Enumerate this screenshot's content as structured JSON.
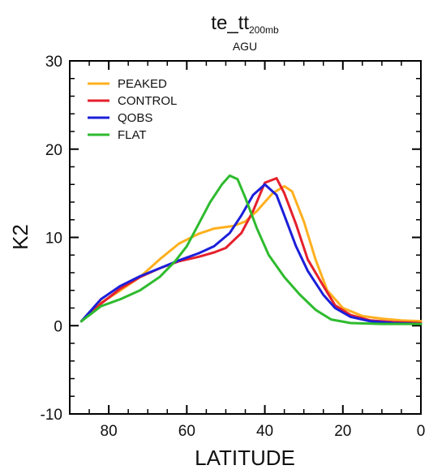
{
  "chart_data": {
    "type": "line",
    "title": {
      "main": "te_tt",
      "subscript": "200mb"
    },
    "subtitle": "AGU",
    "xlabel": "LATITUDE",
    "ylabel": "K2",
    "xlim": [
      90,
      0
    ],
    "ylim": [
      -10,
      30
    ],
    "x_ticks": [
      80,
      60,
      40,
      20,
      0
    ],
    "y_ticks": [
      -10,
      0,
      10,
      20,
      30
    ],
    "x_minor_step": 5,
    "y_minor_step": 2,
    "legend_position": "top-left",
    "grid": false,
    "series": [
      {
        "name": "PEAKED",
        "color": "#FFB01F",
        "points": [
          [
            87,
            0.5
          ],
          [
            82,
            2.6
          ],
          [
            77,
            4.0
          ],
          [
            72,
            5.5
          ],
          [
            67,
            7.5
          ],
          [
            62,
            9.3
          ],
          [
            57,
            10.4
          ],
          [
            53,
            11.0
          ],
          [
            48,
            11.3
          ],
          [
            45,
            11.8
          ],
          [
            42,
            13.0
          ],
          [
            38,
            15.0
          ],
          [
            35,
            15.8
          ],
          [
            33,
            15.2
          ],
          [
            30,
            11.8
          ],
          [
            27,
            7.5
          ],
          [
            24,
            4.0
          ],
          [
            20,
            2.0
          ],
          [
            15,
            1.1
          ],
          [
            10,
            0.8
          ],
          [
            5,
            0.6
          ],
          [
            0,
            0.5
          ]
        ]
      },
      {
        "name": "CONTROL",
        "color": "#E5202C",
        "points": [
          [
            87,
            0.5
          ],
          [
            82,
            2.5
          ],
          [
            77,
            4.2
          ],
          [
            72,
            5.5
          ],
          [
            67,
            6.5
          ],
          [
            62,
            7.3
          ],
          [
            57,
            7.8
          ],
          [
            53,
            8.3
          ],
          [
            50,
            8.8
          ],
          [
            46,
            10.5
          ],
          [
            43,
            13.0
          ],
          [
            40,
            16.2
          ],
          [
            37,
            16.7
          ],
          [
            35,
            15.0
          ],
          [
            32,
            11.5
          ],
          [
            29,
            7.5
          ],
          [
            25,
            4.5
          ],
          [
            22,
            2.3
          ],
          [
            18,
            1.2
          ],
          [
            13,
            0.6
          ],
          [
            7,
            0.4
          ],
          [
            0,
            0.3
          ]
        ]
      },
      {
        "name": "QOBS",
        "color": "#1C1FD9",
        "points": [
          [
            87,
            0.5
          ],
          [
            82,
            3.0
          ],
          [
            77,
            4.5
          ],
          [
            72,
            5.6
          ],
          [
            67,
            6.5
          ],
          [
            62,
            7.4
          ],
          [
            57,
            8.2
          ],
          [
            53,
            9.0
          ],
          [
            49,
            10.5
          ],
          [
            46,
            12.5
          ],
          [
            43,
            14.8
          ],
          [
            40,
            16.0
          ],
          [
            37,
            14.8
          ],
          [
            35,
            12.5
          ],
          [
            32,
            9.0
          ],
          [
            29,
            6.2
          ],
          [
            25,
            3.5
          ],
          [
            22,
            2.0
          ],
          [
            18,
            1.0
          ],
          [
            13,
            0.5
          ],
          [
            7,
            0.3
          ],
          [
            0,
            0.2
          ]
        ]
      },
      {
        "name": "FLAT",
        "color": "#2EBB2E",
        "points": [
          [
            87,
            0.5
          ],
          [
            82,
            2.2
          ],
          [
            77,
            3.0
          ],
          [
            72,
            4.0
          ],
          [
            67,
            5.5
          ],
          [
            63,
            7.3
          ],
          [
            60,
            9.0
          ],
          [
            57,
            11.5
          ],
          [
            54,
            14.0
          ],
          [
            51,
            16.0
          ],
          [
            49,
            17.0
          ],
          [
            47,
            16.6
          ],
          [
            45,
            14.5
          ],
          [
            42,
            11.0
          ],
          [
            39,
            8.0
          ],
          [
            35,
            5.5
          ],
          [
            31,
            3.5
          ],
          [
            27,
            1.8
          ],
          [
            23,
            0.7
          ],
          [
            18,
            0.3
          ],
          [
            10,
            0.2
          ],
          [
            0,
            0.2
          ]
        ]
      }
    ]
  }
}
